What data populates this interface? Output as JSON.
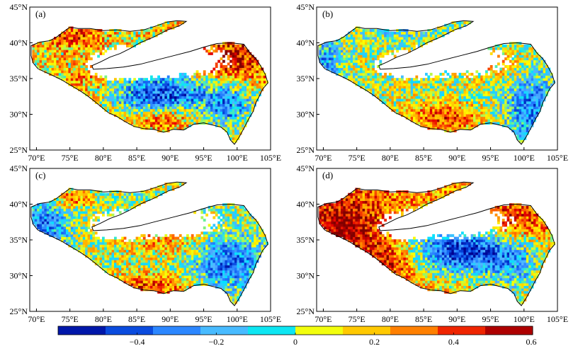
{
  "panels": [
    {
      "label": "(a)",
      "pattern": "a"
    },
    {
      "label": "(b)",
      "pattern": "b"
    },
    {
      "label": "(c)",
      "pattern": "c"
    },
    {
      "label": "(d)",
      "pattern": "d"
    }
  ],
  "axes": {
    "x_ticks": [
      "70°E",
      "75°E",
      "80°E",
      "85°E",
      "90°E",
      "95°E",
      "100°E",
      "105°E"
    ],
    "y_ticks": [
      "45°N",
      "40°N",
      "35°N",
      "30°N",
      "25°N"
    ],
    "lon_range": [
      69,
      105
    ],
    "lat_range": [
      25,
      45
    ]
  },
  "colorbar": {
    "ticks": [
      "−0.4",
      "−0.2",
      "0",
      "0.2",
      "0.4",
      "0.6"
    ],
    "range": [
      -0.6,
      0.6
    ],
    "colors": [
      "#00008f",
      "#0033cc",
      "#1e78ff",
      "#55b4ff",
      "#00e5ff",
      "#ffff00",
      "#ffc000",
      "#ff6a00",
      "#e60000",
      "#800000"
    ]
  }
}
